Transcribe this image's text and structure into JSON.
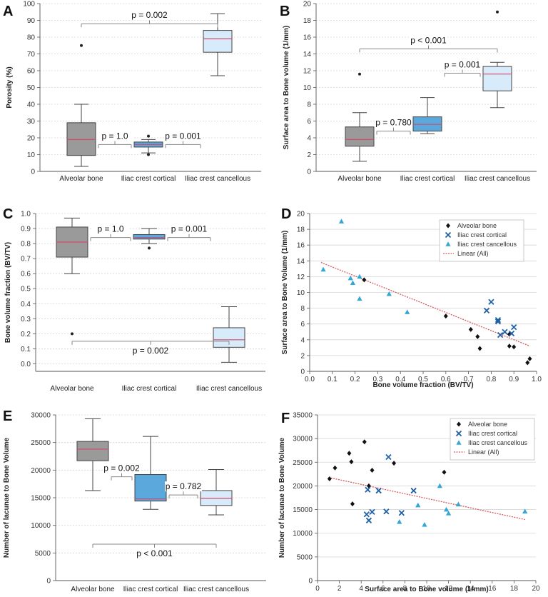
{
  "colors": {
    "alveolar": "#9a9a9a",
    "cortical": "#5aa8dc",
    "cancellous": "#d8ebfa",
    "median": "#d14a6a",
    "bracket": "#888888",
    "scatter_alveolar": "#111111",
    "scatter_cortical": "#1f5fa8",
    "scatter_cancellous": "#35a7d6",
    "trend": "#d85a5a"
  },
  "chart_data": [
    {
      "panel": "A",
      "type": "box",
      "ylabel": "Porosity (%)",
      "ylim": [
        0,
        100
      ],
      "yticks": [
        0,
        10,
        20,
        30,
        40,
        50,
        60,
        70,
        80,
        90,
        100
      ],
      "yticklabels": [
        "0",
        "10",
        "20",
        "30",
        "40",
        "50",
        "60",
        "70",
        "80",
        "90",
        "100"
      ],
      "categories": [
        "Alveolar bone",
        "Iliac crest cortical",
        "Iliac crest cancellous"
      ],
      "boxes": [
        {
          "min": 3,
          "q1": 9.5,
          "median": 19,
          "q3": 29,
          "max": 40,
          "outliers": [
            75
          ]
        },
        {
          "min": 11,
          "q1": 14.5,
          "median": 16,
          "q3": 17.5,
          "max": 19,
          "outliers": [
            21,
            10
          ]
        },
        {
          "min": 57,
          "q1": 71,
          "median": 79,
          "q3": 84,
          "max": 94,
          "outliers": []
        }
      ],
      "comparisons": [
        {
          "label": "p = 0.002",
          "from": 0,
          "to": 2,
          "y": 88
        },
        {
          "label": "p = 1.0",
          "from": 0,
          "to": 1,
          "y": 16
        },
        {
          "label": "p = 0.001",
          "from": 1,
          "to": 2,
          "y": 16
        }
      ]
    },
    {
      "panel": "B",
      "type": "box",
      "ylabel": "Surface area to Bone volume (1/mm)",
      "ylim": [
        0,
        20
      ],
      "yticks": [
        0,
        2,
        4,
        6,
        8,
        10,
        12,
        14,
        16,
        18,
        20
      ],
      "yticklabels": [
        "0",
        "2",
        "4",
        "6",
        "8",
        "10",
        "12",
        "14",
        "16",
        "18",
        "20"
      ],
      "categories": [
        "Alveolar bone",
        "Iliac crest cortical",
        "Iliac crest cancellous"
      ],
      "boxes": [
        {
          "min": 1.2,
          "q1": 3,
          "median": 3.8,
          "q3": 5.3,
          "max": 7,
          "outliers": [
            11.6
          ]
        },
        {
          "min": 4.5,
          "q1": 4.8,
          "median": 5.6,
          "q3": 6.5,
          "max": 8.8,
          "outliers": []
        },
        {
          "min": 7.6,
          "q1": 9.6,
          "median": 11.6,
          "q3": 12.5,
          "max": 13,
          "outliers": [
            19
          ]
        }
      ],
      "comparisons": [
        {
          "label": "p < 0.001",
          "from": 0,
          "to": 2,
          "y": 14.6
        },
        {
          "label": "p = 0.001",
          "from": 1,
          "to": 2,
          "y": 11.7
        },
        {
          "label": "p = 0.780",
          "from": 0,
          "to": 1,
          "y": 4.8
        }
      ]
    },
    {
      "panel": "C",
      "type": "box",
      "ylabel": "Bone volume fraction (BV/TV)",
      "ylim": [
        -0.05,
        1.0
      ],
      "yticks": [
        0,
        0.1,
        0.2,
        0.3,
        0.4,
        0.5,
        0.6,
        0.7,
        0.8,
        0.9,
        1.0
      ],
      "yticklabels": [
        "0.0",
        "0.1",
        "0.2",
        "0.3",
        "0.4",
        "0.5",
        "0.6",
        "0.7",
        "0.8",
        "0.9",
        "1.0"
      ],
      "categories": [
        "Alveolar bone",
        "Iliac crest cortical",
        "Iliac crest cancellous"
      ],
      "boxes": [
        {
          "min": 0.6,
          "q1": 0.71,
          "median": 0.81,
          "q3": 0.91,
          "max": 0.97,
          "outliers": [
            0.2
          ]
        },
        {
          "min": 0.8,
          "q1": 0.83,
          "median": 0.84,
          "q3": 0.86,
          "max": 0.9,
          "outliers": [
            0.77
          ]
        },
        {
          "min": 0.01,
          "q1": 0.11,
          "median": 0.16,
          "q3": 0.24,
          "max": 0.38,
          "outliers": []
        }
      ],
      "comparisons": [
        {
          "label": "p = 1.0",
          "from": 0,
          "to": 1,
          "y": 0.84
        },
        {
          "label": "p = 0.001",
          "from": 1,
          "to": 2,
          "y": 0.84
        },
        {
          "label": "p = 0.002",
          "from": 0,
          "to": 2,
          "y": 0.15,
          "bracket_down": true
        }
      ]
    },
    {
      "panel": "D",
      "type": "scatter",
      "xlabel": "Bone volume fraction (BV/TV)",
      "ylabel": "Surface area to Bone Volume (1/mm)",
      "xlim": [
        0,
        1
      ],
      "ylim": [
        0,
        20
      ],
      "xticks": [
        0,
        0.1,
        0.2,
        0.3,
        0.4,
        0.5,
        0.6,
        0.7,
        0.8,
        0.9,
        1.0
      ],
      "xticklabels": [
        "0.0",
        "0.1",
        "0.2",
        "0.3",
        "0.4",
        "0.5",
        "0.6",
        "0.7",
        "0.8",
        "0.9",
        "1.0"
      ],
      "yticks": [
        0,
        2,
        4,
        6,
        8,
        10,
        12,
        14,
        16,
        18,
        20
      ],
      "yticklabels": [
        "0",
        "2",
        "4",
        "6",
        "8",
        "10",
        "12",
        "14",
        "16",
        "18",
        "20"
      ],
      "legend": [
        "Alveolar bone",
        "Iliac crest cortical",
        "Iliac crest cancellous",
        "Linear (All)"
      ],
      "series": [
        {
          "name": "Alveolar bone",
          "marker": "diamond",
          "points": [
            [
              0.24,
              11.6
            ],
            [
              0.6,
              7.0
            ],
            [
              0.71,
              5.3
            ],
            [
              0.74,
              4.4
            ],
            [
              0.75,
              2.9
            ],
            [
              0.88,
              3.2
            ],
            [
              0.9,
              3.1
            ],
            [
              0.88,
              4.7
            ],
            [
              0.96,
              1.1
            ],
            [
              0.97,
              1.6
            ]
          ]
        },
        {
          "name": "Iliac crest cortical",
          "marker": "x",
          "points": [
            [
              0.78,
              7.7
            ],
            [
              0.8,
              8.8
            ],
            [
              0.83,
              6.5
            ],
            [
              0.83,
              6.3
            ],
            [
              0.84,
              4.6
            ],
            [
              0.86,
              5.0
            ],
            [
              0.89,
              4.8
            ],
            [
              0.9,
              5.6
            ]
          ]
        },
        {
          "name": "Iliac crest cancellous",
          "marker": "triangle",
          "points": [
            [
              0.06,
              12.9
            ],
            [
              0.14,
              19.0
            ],
            [
              0.18,
              11.8
            ],
            [
              0.19,
              11.2
            ],
            [
              0.22,
              12.0
            ],
            [
              0.22,
              9.2
            ],
            [
              0.35,
              9.8
            ],
            [
              0.43,
              7.5
            ]
          ]
        }
      ],
      "trend": {
        "x1": 0.05,
        "y1": 13.8,
        "x2": 0.97,
        "y2": 3.2
      }
    },
    {
      "panel": "E",
      "type": "box",
      "ylabel": "Number of lacunae to Bone Volume",
      "ylim": [
        0,
        30000
      ],
      "yticks": [
        0,
        5000,
        10000,
        15000,
        20000,
        25000,
        30000
      ],
      "yticklabels": [
        "0",
        "5000",
        "10000",
        "15000",
        "20000",
        "25000",
        "30000"
      ],
      "categories": [
        "Alveolar bone",
        "Iliac crest cortical",
        "Iliac crest cancellous"
      ],
      "boxes": [
        {
          "min": 16300,
          "q1": 21700,
          "median": 23800,
          "q3": 25200,
          "max": 29300,
          "outliers": []
        },
        {
          "min": 12900,
          "q1": 14400,
          "median": 14800,
          "q3": 19200,
          "max": 26100,
          "outliers": []
        },
        {
          "min": 11900,
          "q1": 13600,
          "median": 14900,
          "q3": 16300,
          "max": 20100,
          "outliers": []
        }
      ],
      "comparisons": [
        {
          "label": "p = 0.002",
          "from": 0,
          "to": 1,
          "y": 18800
        },
        {
          "label": "p = 0.782",
          "from": 1,
          "to": 2,
          "y": 15500
        },
        {
          "label": "p < 0.001",
          "from": 0,
          "to": 2,
          "y": 6600,
          "bracket_down": true
        }
      ]
    },
    {
      "panel": "F",
      "type": "scatter",
      "xlabel": "Surface area to Bone volume (1/mm)",
      "ylabel": "Number of lacunae to Bone Volume",
      "xlim": [
        0,
        20
      ],
      "ylim": [
        0,
        35000
      ],
      "xticks": [
        0,
        2,
        4,
        6,
        8,
        10,
        12,
        14,
        16,
        18,
        20
      ],
      "xticklabels": [
        "0",
        "2",
        "4",
        "6",
        "8",
        "10",
        "12",
        "14",
        "16",
        "18",
        "20"
      ],
      "yticks": [
        0,
        5000,
        10000,
        15000,
        20000,
        25000,
        30000,
        35000
      ],
      "yticklabels": [
        "0",
        "5000",
        "10000",
        "15000",
        "20000",
        "25000",
        "30000",
        "35000"
      ],
      "legend": [
        "Alveolar bone",
        "Iliac crest cortical",
        "Iliac crest cancellous",
        "Linear (All)"
      ],
      "series": [
        {
          "name": "Alveolar bone",
          "marker": "diamond",
          "points": [
            [
              1.1,
              21500
            ],
            [
              1.6,
              23800
            ],
            [
              2.9,
              26900
            ],
            [
              3.1,
              25100
            ],
            [
              3.2,
              16200
            ],
            [
              4.3,
              29300
            ],
            [
              5.0,
              23300
            ],
            [
              4.7,
              20000
            ],
            [
              7.0,
              24800
            ],
            [
              11.6,
              22900
            ]
          ]
        },
        {
          "name": "Iliac crest cortical",
          "marker": "x",
          "points": [
            [
              4.5,
              14000
            ],
            [
              4.6,
              19200
            ],
            [
              4.7,
              12700
            ],
            [
              5.0,
              14500
            ],
            [
              5.6,
              19000
            ],
            [
              6.3,
              14600
            ],
            [
              6.5,
              26100
            ],
            [
              7.7,
              14300
            ],
            [
              8.8,
              19000
            ]
          ]
        },
        {
          "name": "Iliac crest cancellous",
          "marker": "triangle",
          "points": [
            [
              7.5,
              12400
            ],
            [
              9.2,
              15900
            ],
            [
              9.8,
              11800
            ],
            [
              11.2,
              20000
            ],
            [
              11.8,
              15000
            ],
            [
              12.0,
              14200
            ],
            [
              12.9,
              16100
            ],
            [
              19.0,
              14600
            ]
          ]
        }
      ],
      "trend": {
        "x1": 1,
        "y1": 21800,
        "x2": 19,
        "y2": 12900
      }
    }
  ]
}
